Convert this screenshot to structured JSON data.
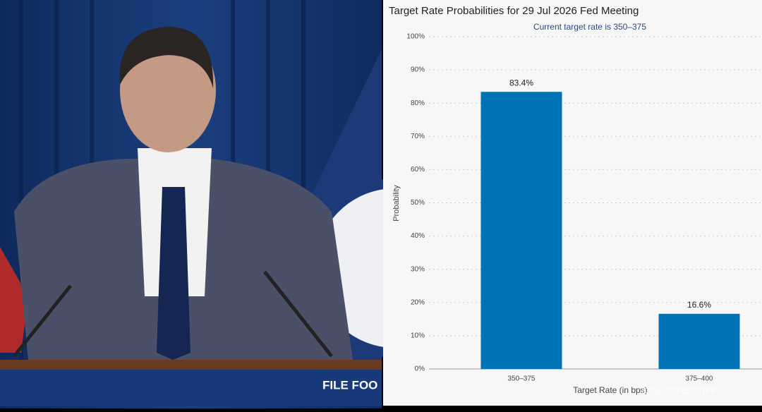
{
  "chart_data": {
    "type": "bar",
    "title": "Target Rate Probabilities for 29 Jul 2026 Fed Meeting",
    "subtitle": "Current target rate is 350–375",
    "ylabel": "Probability",
    "xlabel": "Target Rate (in bps)",
    "categories": [
      "350–375",
      "375–400"
    ],
    "values": [
      83.4,
      16.6
    ],
    "value_labels": [
      "83.4%",
      "16.6%"
    ],
    "color": "#0073b7",
    "ylim": [
      0,
      100
    ],
    "yticks": [
      {
        "value": 0,
        "label": "0%"
      },
      {
        "value": 10,
        "label": "10%"
      },
      {
        "value": 20,
        "label": "20%"
      },
      {
        "value": 30,
        "label": "30%"
      },
      {
        "value": 40,
        "label": "40%"
      },
      {
        "value": 50,
        "label": "50%"
      },
      {
        "value": 60,
        "label": "60%"
      },
      {
        "value": 70,
        "label": "70%"
      },
      {
        "value": 80,
        "label": "80%"
      },
      {
        "value": 90,
        "label": "90%"
      },
      {
        "value": 100,
        "label": "100%"
      }
    ],
    "grid": true
  },
  "photo": {
    "podium_text": "FILE FOO"
  },
  "watermark": "@SiliconEmpire"
}
